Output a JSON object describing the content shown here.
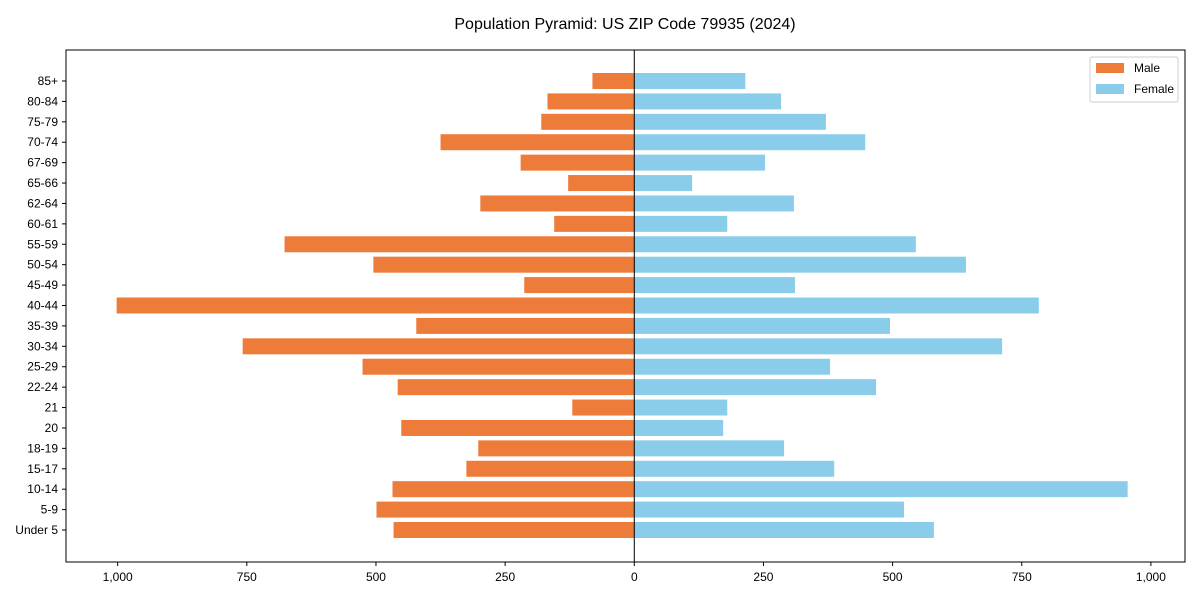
{
  "chart_data": {
    "type": "bar",
    "orientation": "horizontal",
    "title": "Population Pyramid: US ZIP Code 79935 (2024)",
    "xlabel": "",
    "ylabel": "",
    "xlim": [
      -1100,
      1066
    ],
    "xticks": [
      -1000,
      -750,
      -500,
      -250,
      0,
      250,
      500,
      750,
      1000
    ],
    "xtick_labels": [
      "1,000",
      "750",
      "500",
      "250",
      "0",
      "250",
      "500",
      "750",
      "1,000"
    ],
    "categories": [
      "Under 5",
      "5-9",
      "10-14",
      "15-17",
      "18-19",
      "20",
      "21",
      "22-24",
      "25-29",
      "30-34",
      "35-39",
      "40-44",
      "45-49",
      "50-54",
      "55-59",
      "60-61",
      "62-64",
      "65-66",
      "67-69",
      "70-74",
      "75-79",
      "80-84",
      "85+"
    ],
    "series": [
      {
        "name": "Male",
        "color": "#ED7B3A",
        "values": [
          466,
          499,
          468,
          325,
          302,
          451,
          120,
          458,
          526,
          758,
          422,
          1002,
          213,
          505,
          677,
          155,
          298,
          128,
          220,
          375,
          180,
          168,
          81
        ]
      },
      {
        "name": "Female",
        "color": "#8ACDEA",
        "values": [
          580,
          522,
          955,
          387,
          290,
          172,
          180,
          468,
          379,
          712,
          495,
          783,
          311,
          642,
          545,
          180,
          309,
          112,
          253,
          447,
          371,
          284,
          215
        ]
      }
    ],
    "legend_position": "top-right",
    "grid": false
  }
}
